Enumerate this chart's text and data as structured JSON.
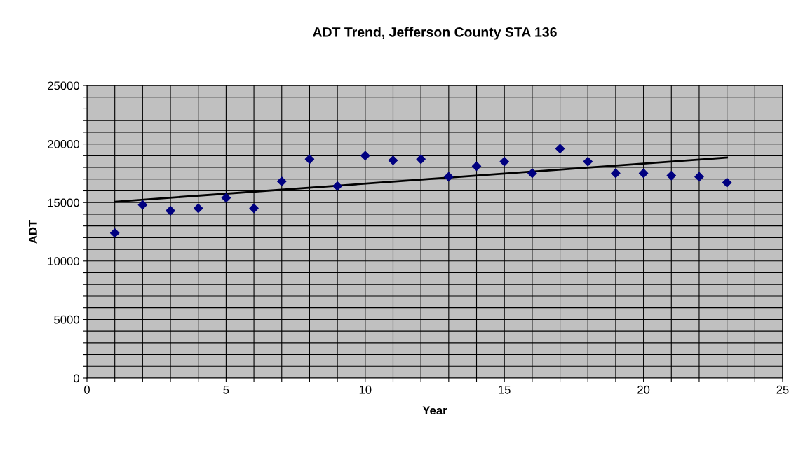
{
  "chart_data": {
    "type": "scatter",
    "title": "ADT Trend, Jefferson County STA 136",
    "xlabel": "Year",
    "ylabel": "ADT",
    "x": [
      1,
      2,
      3,
      4,
      5,
      6,
      7,
      8,
      9,
      10,
      11,
      12,
      13,
      14,
      15,
      16,
      17,
      18,
      19,
      20,
      21,
      22,
      23
    ],
    "series": [
      {
        "color": "#000080",
        "marker": "diamond",
        "values": [
          12400,
          14800,
          14300,
          14500,
          15400,
          14500,
          16800,
          18700,
          16400,
          19000,
          18600,
          18700,
          17200,
          18100,
          18500,
          17500,
          19600,
          18500,
          17500,
          17500,
          17300,
          17200,
          16700
        ]
      },
      {
        "type": "line",
        "color": "#000000",
        "marker": "none",
        "line_style": "solid",
        "x": [
          1,
          23
        ],
        "values": [
          15070,
          18840
        ]
      }
    ],
    "xlim": [
      0,
      25
    ],
    "ylim": [
      0,
      25000
    ],
    "xticks": [
      0,
      {
        "value": 1,
        "label": null
      },
      {
        "value": 2,
        "label": null
      },
      {
        "value": 3,
        "label": null
      },
      {
        "value": 4,
        "label": null
      },
      5,
      {
        "value": 6,
        "label": null
      },
      {
        "value": 7,
        "label": null
      },
      {
        "value": 8,
        "label": null
      },
      {
        "value": 9,
        "label": null
      },
      10,
      {
        "value": 11,
        "label": null
      },
      {
        "value": 12,
        "label": null
      },
      {
        "value": 13,
        "label": null
      },
      {
        "value": 14,
        "label": null
      },
      15,
      {
        "value": 16,
        "label": null
      },
      {
        "value": 17,
        "label": null
      },
      {
        "value": 18,
        "label": null
      },
      {
        "value": 19,
        "label": null
      },
      20,
      {
        "value": 21,
        "label": null
      },
      {
        "value": 22,
        "label": null
      },
      {
        "value": 23,
        "label": null
      },
      {
        "value": 24,
        "label": null
      },
      25
    ],
    "yticks": [
      0,
      {
        "value": 1000,
        "label": null
      },
      {
        "value": 2000,
        "label": null
      },
      {
        "value": 3000,
        "label": null
      },
      {
        "value": 4000,
        "label": null
      },
      5000,
      {
        "value": 6000,
        "label": null
      },
      {
        "value": 7000,
        "label": null
      },
      {
        "value": 8000,
        "label": null
      },
      {
        "value": 9000,
        "label": null
      },
      10000,
      {
        "value": 11000,
        "label": null
      },
      {
        "value": 12000,
        "label": null
      },
      {
        "value": 13000,
        "label": null
      },
      {
        "value": 14000,
        "label": null
      },
      15000,
      {
        "value": 16000,
        "label": null
      },
      {
        "value": 17000,
        "label": null
      },
      {
        "value": 18000,
        "label": null
      },
      {
        "value": 19000,
        "label": null
      },
      20000,
      {
        "value": 21000,
        "label": null
      },
      {
        "value": 22000,
        "label": null
      },
      {
        "value": 23000,
        "label": null
      },
      {
        "value": 24000,
        "label": null
      },
      25000
    ],
    "grid": true,
    "legend": false
  }
}
